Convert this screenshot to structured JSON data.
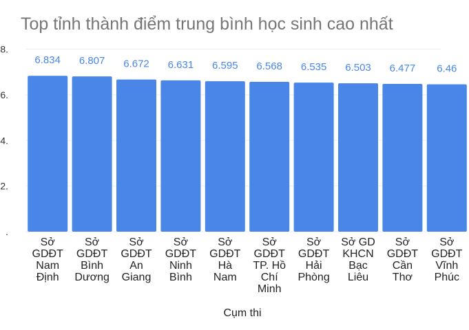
{
  "chart_data": {
    "type": "bar",
    "title": "Top tỉnh thành điểm trung bình học sinh cao nhất",
    "x_label": "Cụm thi",
    "categories": [
      "Sở\nGDĐT\nNam\nĐịnh",
      "Sở\nGDĐT\nBình\nDương",
      "Sở\nGDĐT\nAn\nGiang",
      "Sở\nGDĐT\nNinh\nBình",
      "Sở\nGDĐT\nHà\nNam",
      "Sở\nGDĐT\nTP. Hồ\nChí\nMinh",
      "Sở\nGDĐT\nHải\nPhòng",
      "Sở GD\nKHCN\nBạc\nLiêu",
      "Sở\nGDĐT\nCần\nThơ",
      "Sở\nGDĐT\nVĩnh\nPhúc"
    ],
    "values": [
      6.834,
      6.807,
      6.672,
      6.631,
      6.595,
      6.568,
      6.535,
      6.503,
      6.477,
      6.46
    ],
    "color": "#4a86e8",
    "label_color": "#4a86e8",
    "ylim": [
      0,
      8
    ],
    "yticks": [
      {
        "value": 0,
        "label": "."
      },
      {
        "value": 2,
        "label": "2."
      },
      {
        "value": 4,
        "label": "4."
      },
      {
        "value": 6,
        "label": "6."
      },
      {
        "value": 8,
        "label": "8."
      }
    ],
    "grid": true
  }
}
